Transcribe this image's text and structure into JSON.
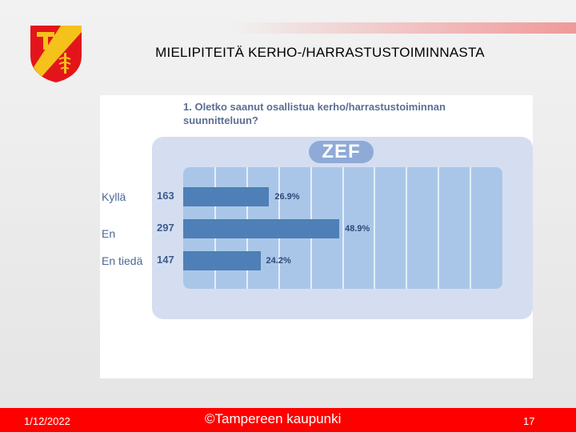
{
  "slide": {
    "title": "MIELIPITEITÄ KERHO-/HARRASTUSTOIMINNASTA",
    "footer_date": "1/12/2022",
    "footer_org": "©Tampereen kaupunki",
    "page_number": "17"
  },
  "colors": {
    "footer": "#ff0000",
    "bar": "#4e7fb6",
    "plot_bg": "#a9c6e8",
    "panel_bg": "#d4def0",
    "logo_red": "#e3151a",
    "logo_gold": "#f4c21b"
  },
  "chart_data": {
    "type": "bar",
    "orientation": "horizontal",
    "title": "1. Oletko saanut osallistua kerho/harrastustoiminnan suunnitteluun?",
    "brand": "ZEF",
    "categories": [
      "Kyllä",
      "En",
      "En tiedä"
    ],
    "counts": [
      "163",
      "297",
      "147"
    ],
    "values": [
      26.9,
      48.9,
      24.2
    ],
    "value_labels": [
      "26.9%",
      "48.9%",
      "24.2%"
    ],
    "xlim": [
      0,
      100
    ],
    "grid": true,
    "legend": "none"
  }
}
